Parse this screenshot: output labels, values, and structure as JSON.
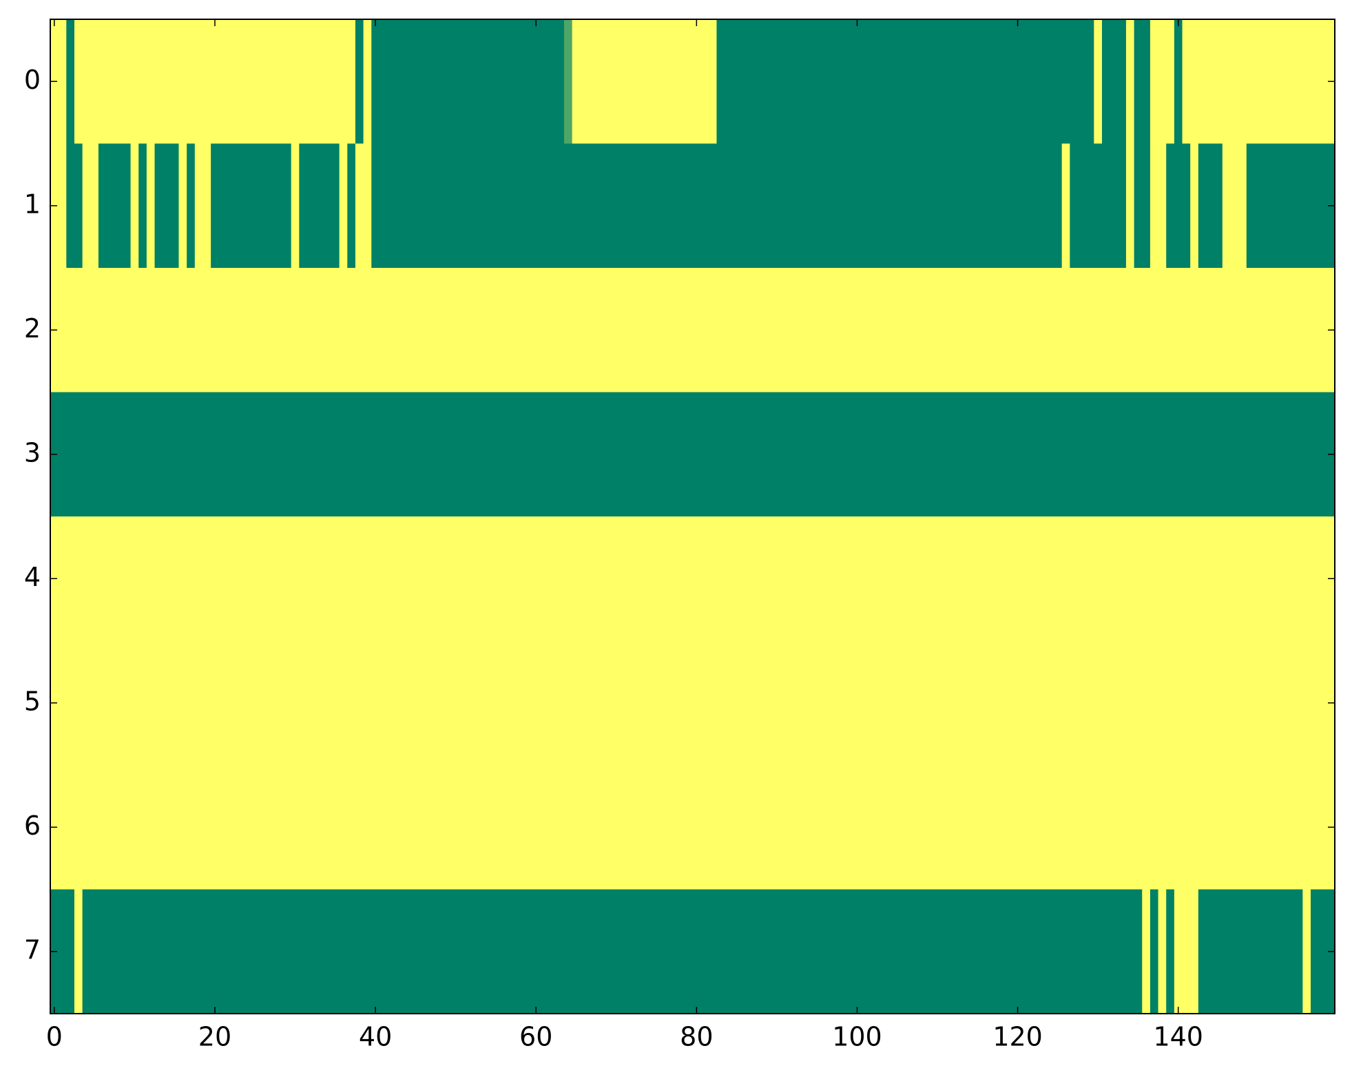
{
  "chart_data": {
    "type": "heatmap",
    "xlim": [
      -0.5,
      159.5
    ],
    "ylim": [
      7.5,
      -0.5
    ],
    "xticks": [
      0,
      20,
      40,
      60,
      80,
      100,
      120,
      140
    ],
    "yticks": [
      0,
      1,
      2,
      3,
      4,
      5,
      6,
      7
    ],
    "colormap": [
      "#008066",
      "#ffff66"
    ],
    "clim": [
      0,
      1
    ],
    "z": [
      [
        1,
        1,
        0,
        1,
        1,
        1,
        1,
        1,
        1,
        1,
        1,
        1,
        1,
        1,
        1,
        1,
        1,
        1,
        1,
        1,
        1,
        1,
        1,
        1,
        1,
        1,
        1,
        1,
        1,
        1,
        1,
        1,
        1,
        1,
        1,
        1,
        1,
        1,
        0,
        1,
        0,
        0,
        0,
        0,
        0,
        0,
        0,
        0,
        0,
        0,
        0,
        0,
        0,
        0,
        0,
        0,
        0,
        0,
        0,
        0,
        0,
        0,
        0,
        0,
        0.3,
        1,
        1,
        1,
        1,
        1,
        1,
        1,
        1,
        1,
        1,
        1,
        1,
        1,
        1,
        1,
        1,
        1,
        1,
        0,
        0,
        0,
        0,
        0,
        0,
        0,
        0,
        0,
        0,
        0,
        0,
        0,
        0,
        0,
        0,
        0,
        0,
        0,
        0,
        0,
        0,
        0,
        0,
        0,
        0,
        0,
        0,
        0,
        0,
        0,
        0,
        0,
        0,
        0,
        0,
        0,
        0,
        0,
        0,
        0,
        0,
        0,
        0,
        0,
        0,
        0,
        1,
        0,
        0,
        0,
        1,
        0,
        0,
        1,
        1,
        1,
        0,
        1,
        1,
        1,
        1,
        1,
        1,
        1,
        1,
        1,
        1,
        1,
        1,
        1,
        1,
        1,
        1,
        1,
        1,
        1
      ],
      [
        1,
        1,
        0,
        0,
        1,
        1,
        0,
        0,
        0,
        0,
        1,
        0,
        1,
        0,
        0,
        0,
        1,
        0,
        1,
        1,
        0,
        0,
        0,
        0,
        0,
        0,
        0,
        0,
        0,
        0,
        1,
        0,
        0,
        0,
        0,
        0,
        1,
        0,
        1,
        1,
        0,
        0,
        0,
        0,
        0,
        0,
        0,
        0,
        0,
        0,
        0,
        0,
        0,
        0,
        0,
        0,
        0,
        0,
        0,
        0,
        0,
        0,
        0,
        0,
        0,
        0,
        0,
        0,
        0,
        0,
        0,
        0,
        0,
        0,
        0,
        0,
        0,
        0,
        0,
        0,
        0,
        0,
        0,
        0,
        0,
        0,
        0,
        0,
        0,
        0,
        0,
        0,
        0,
        0,
        0,
        0,
        0,
        0,
        0,
        0,
        0,
        0,
        0,
        0,
        0,
        0,
        0,
        0,
        0,
        0,
        0,
        0,
        0,
        0,
        0,
        0,
        0,
        0,
        0,
        0,
        0,
        0,
        0,
        0,
        0,
        0,
        1,
        0,
        0,
        0,
        0,
        0,
        0,
        0,
        1,
        0,
        0,
        1,
        1,
        0,
        0,
        0,
        1,
        0,
        0,
        0,
        1,
        1,
        1,
        0,
        0,
        0,
        0,
        0,
        0,
        0,
        0,
        0,
        0,
        0
      ],
      [
        1,
        1,
        1,
        1,
        1,
        1,
        1,
        1,
        1,
        1,
        1,
        1,
        1,
        1,
        1,
        1,
        1,
        1,
        1,
        1,
        1,
        1,
        1,
        1,
        1,
        1,
        1,
        1,
        1,
        1,
        1,
        1,
        1,
        1,
        1,
        1,
        1,
        1,
        1,
        1,
        1,
        1,
        1,
        1,
        1,
        1,
        1,
        1,
        1,
        1,
        1,
        1,
        1,
        1,
        1,
        1,
        1,
        1,
        1,
        1,
        1,
        1,
        1,
        1,
        1,
        1,
        1,
        1,
        1,
        1,
        1,
        1,
        1,
        1,
        1,
        1,
        1,
        1,
        1,
        1,
        1,
        1,
        1,
        1,
        1,
        1,
        1,
        1,
        1,
        1,
        1,
        1,
        1,
        1,
        1,
        1,
        1,
        1,
        1,
        1,
        1,
        1,
        1,
        1,
        1,
        1,
        1,
        1,
        1,
        1,
        1,
        1,
        1,
        1,
        1,
        1,
        1,
        1,
        1,
        1,
        1,
        1,
        1,
        1,
        1,
        1,
        1,
        1,
        1,
        1,
        1,
        1,
        1,
        1,
        1,
        1,
        1,
        1,
        1,
        1,
        1,
        1,
        1,
        1,
        1,
        1,
        1,
        1,
        1,
        1,
        1,
        1,
        1,
        1,
        1,
        1,
        1,
        1,
        1,
        1
      ],
      [
        0,
        0,
        0,
        0,
        0,
        0,
        0,
        0,
        0,
        0,
        0,
        0,
        0,
        0,
        0,
        0,
        0,
        0,
        0,
        0,
        0,
        0,
        0,
        0,
        0,
        0,
        0,
        0,
        0,
        0,
        0,
        0,
        0,
        0,
        0,
        0,
        0,
        0,
        0,
        0,
        0,
        0,
        0,
        0,
        0,
        0,
        0,
        0,
        0,
        0,
        0,
        0,
        0,
        0,
        0,
        0,
        0,
        0,
        0,
        0,
        0,
        0,
        0,
        0,
        0,
        0,
        0,
        0,
        0,
        0,
        0,
        0,
        0,
        0,
        0,
        0,
        0,
        0,
        0,
        0,
        0,
        0,
        0,
        0,
        0,
        0,
        0,
        0,
        0,
        0,
        0,
        0,
        0,
        0,
        0,
        0,
        0,
        0,
        0,
        0,
        0,
        0,
        0,
        0,
        0,
        0,
        0,
        0,
        0,
        0,
        0,
        0,
        0,
        0,
        0,
        0,
        0,
        0,
        0,
        0,
        0,
        0,
        0,
        0,
        0,
        0,
        0,
        0,
        0,
        0,
        0,
        0,
        0,
        0,
        0,
        0,
        0,
        0,
        0,
        0,
        0,
        0,
        0,
        0,
        0,
        0,
        0,
        0,
        0,
        0,
        0,
        0,
        0,
        0,
        0,
        0,
        0,
        0,
        0,
        0
      ],
      [
        1,
        1,
        1,
        1,
        1,
        1,
        1,
        1,
        1,
        1,
        1,
        1,
        1,
        1,
        1,
        1,
        1,
        1,
        1,
        1,
        1,
        1,
        1,
        1,
        1,
        1,
        1,
        1,
        1,
        1,
        1,
        1,
        1,
        1,
        1,
        1,
        1,
        1,
        1,
        1,
        1,
        1,
        1,
        1,
        1,
        1,
        1,
        1,
        1,
        1,
        1,
        1,
        1,
        1,
        1,
        1,
        1,
        1,
        1,
        1,
        1,
        1,
        1,
        1,
        1,
        1,
        1,
        1,
        1,
        1,
        1,
        1,
        1,
        1,
        1,
        1,
        1,
        1,
        1,
        1,
        1,
        1,
        1,
        1,
        1,
        1,
        1,
        1,
        1,
        1,
        1,
        1,
        1,
        1,
        1,
        1,
        1,
        1,
        1,
        1,
        1,
        1,
        1,
        1,
        1,
        1,
        1,
        1,
        1,
        1,
        1,
        1,
        1,
        1,
        1,
        1,
        1,
        1,
        1,
        1,
        1,
        1,
        1,
        1,
        1,
        1,
        1,
        1,
        1,
        1,
        1,
        1,
        1,
        1,
        1,
        1,
        1,
        1,
        1,
        1,
        1,
        1,
        1,
        1,
        1,
        1,
        1,
        1,
        1,
        1,
        1,
        1,
        1,
        1,
        1,
        1,
        1,
        1,
        1,
        1
      ],
      [
        1,
        1,
        1,
        1,
        1,
        1,
        1,
        1,
        1,
        1,
        1,
        1,
        1,
        1,
        1,
        1,
        1,
        1,
        1,
        1,
        1,
        1,
        1,
        1,
        1,
        1,
        1,
        1,
        1,
        1,
        1,
        1,
        1,
        1,
        1,
        1,
        1,
        1,
        1,
        1,
        1,
        1,
        1,
        1,
        1,
        1,
        1,
        1,
        1,
        1,
        1,
        1,
        1,
        1,
        1,
        1,
        1,
        1,
        1,
        1,
        1,
        1,
        1,
        1,
        1,
        1,
        1,
        1,
        1,
        1,
        1,
        1,
        1,
        1,
        1,
        1,
        1,
        1,
        1,
        1,
        1,
        1,
        1,
        1,
        1,
        1,
        1,
        1,
        1,
        1,
        1,
        1,
        1,
        1,
        1,
        1,
        1,
        1,
        1,
        1,
        1,
        1,
        1,
        1,
        1,
        1,
        1,
        1,
        1,
        1,
        1,
        1,
        1,
        1,
        1,
        1,
        1,
        1,
        1,
        1,
        1,
        1,
        1,
        1,
        1,
        1,
        1,
        1,
        1,
        1,
        1,
        1,
        1,
        1,
        1,
        1,
        1,
        1,
        1,
        1,
        1,
        1,
        1,
        1,
        1,
        1,
        1,
        1,
        1,
        1,
        1,
        1,
        1,
        1,
        1,
        1,
        1,
        1,
        1,
        1
      ],
      [
        1,
        1,
        1,
        1,
        1,
        1,
        1,
        1,
        1,
        1,
        1,
        1,
        1,
        1,
        1,
        1,
        1,
        1,
        1,
        1,
        1,
        1,
        1,
        1,
        1,
        1,
        1,
        1,
        1,
        1,
        1,
        1,
        1,
        1,
        1,
        1,
        1,
        1,
        1,
        1,
        1,
        1,
        1,
        1,
        1,
        1,
        1,
        1,
        1,
        1,
        1,
        1,
        1,
        1,
        1,
        1,
        1,
        1,
        1,
        1,
        1,
        1,
        1,
        1,
        1,
        1,
        1,
        1,
        1,
        1,
        1,
        1,
        1,
        1,
        1,
        1,
        1,
        1,
        1,
        1,
        1,
        1,
        1,
        1,
        1,
        1,
        1,
        1,
        1,
        1,
        1,
        1,
        1,
        1,
        1,
        1,
        1,
        1,
        1,
        1,
        1,
        1,
        1,
        1,
        1,
        1,
        1,
        1,
        1,
        1,
        1,
        1,
        1,
        1,
        1,
        1,
        1,
        1,
        1,
        1,
        1,
        1,
        1,
        1,
        1,
        1,
        1,
        1,
        1,
        1,
        1,
        1,
        1,
        1,
        1,
        1,
        1,
        1,
        1,
        1,
        1,
        1,
        1,
        1,
        1,
        1,
        1,
        1,
        1,
        1,
        1,
        1,
        1,
        1,
        1,
        1,
        1,
        1,
        1,
        1
      ],
      [
        0,
        0,
        0,
        1,
        0,
        0,
        0,
        0,
        0,
        0,
        0,
        0,
        0,
        0,
        0,
        0,
        0,
        0,
        0,
        0,
        0,
        0,
        0,
        0,
        0,
        0,
        0,
        0,
        0,
        0,
        0,
        0,
        0,
        0,
        0,
        0,
        0,
        0,
        0,
        0,
        0,
        0,
        0,
        0,
        0,
        0,
        0,
        0,
        0,
        0,
        0,
        0,
        0,
        0,
        0,
        0,
        0,
        0,
        0,
        0,
        0,
        0,
        0,
        0,
        0,
        0,
        0,
        0,
        0,
        0,
        0,
        0,
        0,
        0,
        0,
        0,
        0,
        0,
        0,
        0,
        0,
        0,
        0,
        0,
        0,
        0,
        0,
        0,
        0,
        0,
        0,
        0,
        0,
        0,
        0,
        0,
        0,
        0,
        0,
        0,
        0,
        0,
        0,
        0,
        0,
        0,
        0,
        0,
        0,
        0,
        0,
        0,
        0,
        0,
        0,
        0,
        0,
        0,
        0,
        0,
        0,
        0,
        0,
        0,
        0,
        0,
        0,
        0,
        0,
        0,
        0,
        0,
        0,
        0,
        0,
        0,
        1,
        0,
        1,
        0,
        1,
        1,
        1,
        0,
        0,
        0,
        0,
        0,
        0,
        0,
        0,
        0,
        0,
        0,
        0,
        0,
        1,
        0,
        0,
        0
      ]
    ]
  }
}
